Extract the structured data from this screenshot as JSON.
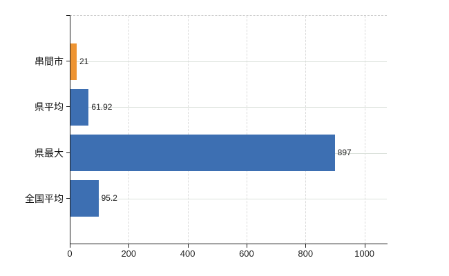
{
  "chart_data": {
    "type": "bar",
    "orientation": "horizontal",
    "title": "",
    "xlabel": "",
    "ylabel": "",
    "categories": [
      "串間市",
      "県平均",
      "県最大",
      "全国平均"
    ],
    "values": [
      21,
      61.92,
      897,
      95.2
    ],
    "value_labels": [
      "21",
      "61.92",
      "897",
      "95.2"
    ],
    "bar_colors": [
      "#ee9432",
      "#3d6fb2",
      "#3d6fb2",
      "#3d6fb2"
    ],
    "x_ticks": [
      0,
      200,
      400,
      600,
      800,
      1000
    ],
    "xlim": [
      0,
      1076
    ],
    "grid": true,
    "legend": "none"
  },
  "colors": {
    "background": "#ffffff",
    "axis": "#1a1a1a",
    "gridline_horizontal": "#dbe1db",
    "gridline_vertical": "#d9d9d9",
    "plot_top_border": "#cccccc",
    "bar_blue": "#3d6fb2",
    "bar_orange": "#ee9432",
    "label_text": "#222222"
  }
}
